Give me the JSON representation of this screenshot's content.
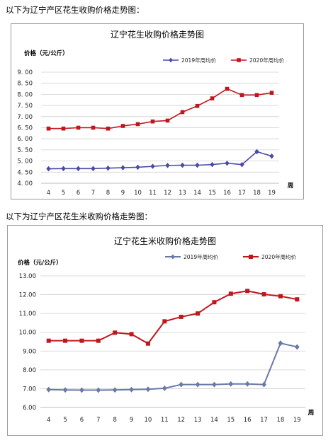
{
  "intro1": "以下为辽宁产区花生收购价格走势图：",
  "intro2": "以下为辽宁产区花生米收购价格走势图：",
  "chart_data": [
    {
      "type": "line",
      "title": "辽宁花生收购价格走势图",
      "ylabel": "价格（元/公斤）",
      "xlabel": "周",
      "ylim": [
        4.0,
        9.0
      ],
      "yticks": [
        "4. 00",
        "4. 50",
        "5. 00",
        "5. 50",
        "6. 00",
        "6. 50",
        "7. 00",
        "7. 50",
        "8. 00",
        "8. 50",
        "9. 00"
      ],
      "ytick_values": [
        4.0,
        4.5,
        5.0,
        5.5,
        6.0,
        6.5,
        7.0,
        7.5,
        8.0,
        8.5,
        9.0
      ],
      "categories": [
        "4",
        "5",
        "6",
        "7",
        "8",
        "9",
        "10",
        "11",
        "12",
        "13",
        "14",
        "15",
        "16",
        "17",
        "18",
        "19"
      ],
      "grid": true,
      "legend_position": "top-right",
      "series": [
        {
          "name": "2019年周均价",
          "color": "#4a4ba8",
          "marker": "diamond",
          "values": [
            4.65,
            4.66,
            4.66,
            4.66,
            4.68,
            4.7,
            4.72,
            4.76,
            4.8,
            4.81,
            4.81,
            4.84,
            4.9,
            4.84,
            5.42,
            5.22
          ]
        },
        {
          "name": "2020年周均价",
          "color": "#c0171d",
          "marker": "square",
          "values": [
            6.46,
            6.46,
            6.5,
            6.5,
            6.46,
            6.58,
            6.66,
            6.78,
            6.82,
            7.2,
            7.48,
            7.82,
            8.25,
            7.97,
            7.97,
            8.07
          ]
        }
      ]
    },
    {
      "type": "line",
      "title": "辽宁花生米收购价格走势图",
      "ylabel": "价格（元/公斤）",
      "xlabel": "周",
      "ylim": [
        6.0,
        13.0
      ],
      "yticks": [
        "6.00",
        "7.00",
        "8.00",
        "9.00",
        "10.00",
        "11.00",
        "12.00",
        "13.00"
      ],
      "ytick_values": [
        6.0,
        7.0,
        8.0,
        9.0,
        10.0,
        11.0,
        12.0,
        13.0
      ],
      "categories": [
        "4",
        "5",
        "6",
        "7",
        "8",
        "9",
        "10",
        "11",
        "12",
        "13",
        "14",
        "15",
        "16",
        "17",
        "18",
        "19"
      ],
      "grid": true,
      "legend_position": "top-right",
      "series": [
        {
          "name": "2019年周均价",
          "color": "#6a79a8",
          "marker": "diamond",
          "values": [
            6.95,
            6.93,
            6.92,
            6.92,
            6.93,
            6.95,
            6.97,
            7.02,
            7.22,
            7.22,
            7.22,
            7.25,
            7.25,
            7.22,
            9.42,
            9.22
          ]
        },
        {
          "name": "2020年周均价",
          "color": "#c0171d",
          "marker": "square",
          "values": [
            9.55,
            9.55,
            9.55,
            9.55,
            9.98,
            9.9,
            9.4,
            10.58,
            10.82,
            11.0,
            11.6,
            12.05,
            12.2,
            12.02,
            11.92,
            11.75
          ]
        }
      ]
    }
  ]
}
